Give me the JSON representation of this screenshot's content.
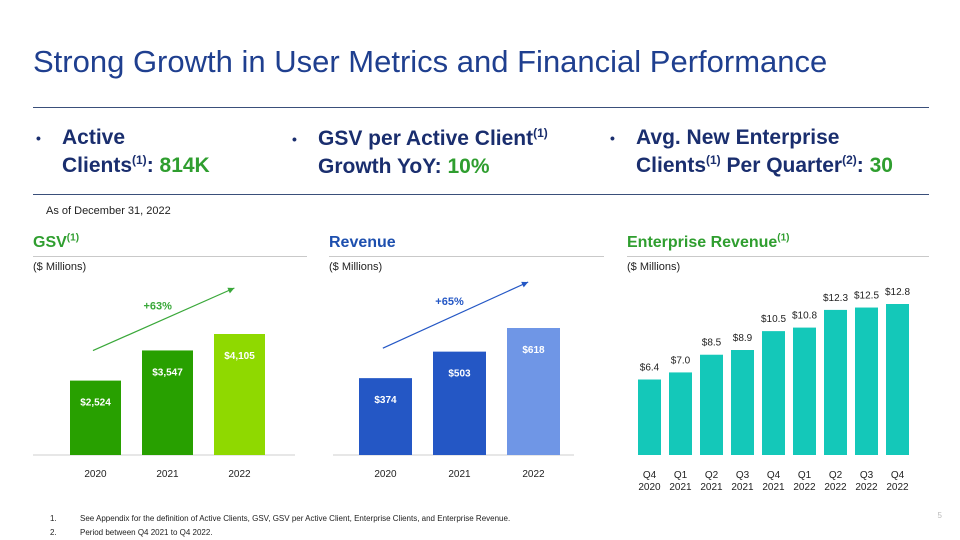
{
  "title": "Strong Growth in User Metrics and Financial Performance",
  "kpis": [
    {
      "label_a": "Active",
      "label_b": "Clients",
      "sup1": "(1)",
      "sep": ": ",
      "value": "814K"
    },
    {
      "label_a": "GSV per Active Client",
      "sup1": "(1)",
      "label_b": "Growth YoY",
      "sep": ": ",
      "value": "10%"
    },
    {
      "label_a": "Avg. New Enterprise",
      "label_b": "Clients",
      "sup1": "(1)",
      "label_c": " Per Quarter",
      "sup2": "(2)",
      "sep": ": ",
      "value": "30"
    }
  ],
  "as_of": "As of December 31, 2022",
  "colors": {
    "title": "#1f3f8f",
    "kpi_value": "#2f9e2f",
    "gsv_title": "#2f9e2f",
    "rev_title": "#1d4fae",
    "ent_title": "#2f9e2f",
    "gsv_bars": [
      "#28a000",
      "#28a000",
      "#8fd900"
    ],
    "rev_bars": [
      "#2457c5",
      "#2457c5",
      "#6f96e6"
    ],
    "ent_bar": "#14c8b9",
    "gsv_arrow": "#3aa83a",
    "rev_arrow": "#2457c5"
  },
  "charts": {
    "gsv": {
      "title": "GSV",
      "sup": "(1)",
      "subtitle": "($ Millions)"
    },
    "revenue": {
      "title": "Revenue",
      "subtitle": "($ Millions)"
    },
    "enterprise": {
      "title": "Enterprise Revenue",
      "sup": "(1)",
      "subtitle": "($ Millions)"
    }
  },
  "chart_data": [
    {
      "id": "gsv",
      "type": "bar",
      "title": "GSV",
      "ylabel": "($ Millions)",
      "categories": [
        "2020",
        "2021",
        "2022"
      ],
      "values": [
        2524,
        3547,
        4105
      ],
      "labels": [
        "$2,524",
        "$3,547",
        "$4,105"
      ],
      "annotation": "+63%",
      "ylim": [
        0,
        4105
      ]
    },
    {
      "id": "revenue",
      "type": "bar",
      "title": "Revenue",
      "ylabel": "($ Millions)",
      "categories": [
        "2020",
        "2021",
        "2022"
      ],
      "values": [
        374,
        503,
        618
      ],
      "labels": [
        "$374",
        "$503",
        "$618"
      ],
      "annotation": "+65%",
      "ylim": [
        0,
        618
      ]
    },
    {
      "id": "enterprise",
      "type": "bar",
      "title": "Enterprise Revenue",
      "ylabel": "($ Millions)",
      "categories": [
        [
          "Q4",
          "2020"
        ],
        [
          "Q1",
          "2021"
        ],
        [
          "Q2",
          "2021"
        ],
        [
          "Q3",
          "2021"
        ],
        [
          "Q4",
          "2021"
        ],
        [
          "Q1",
          "2022"
        ],
        [
          "Q2",
          "2022"
        ],
        [
          "Q3",
          "2022"
        ],
        [
          "Q4",
          "2022"
        ]
      ],
      "values": [
        6.4,
        7.0,
        8.5,
        8.9,
        10.5,
        10.8,
        12.3,
        12.5,
        12.8
      ],
      "labels": [
        "$6.4",
        "$7.0",
        "$8.5",
        "$8.9",
        "$10.5",
        "$10.8",
        "$12.3",
        "$12.5",
        "$12.8"
      ],
      "ylim": [
        0,
        12.8
      ]
    }
  ],
  "footnotes": [
    {
      "num": "1.",
      "text": "See Appendix for the definition of Active Clients, GSV, GSV per Active Client, Enterprise Clients, and Enterprise Revenue."
    },
    {
      "num": "2.",
      "text": "Period between Q4 2021 to Q4 2022."
    }
  ],
  "page_number": "5"
}
